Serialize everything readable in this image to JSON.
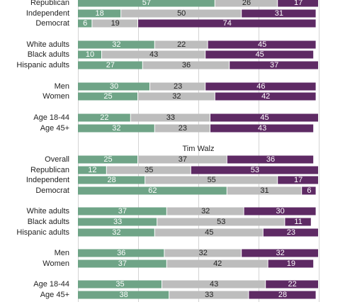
{
  "colors": {
    "segment1": "#6fa487",
    "segment2": "#bdbdbd",
    "segment3": "#5e2a64",
    "label_on_segment1": "#ffffff",
    "label_on_segment2": "#222222",
    "label_on_segment3": "#ffffff",
    "grid": "#d4d4d4",
    "axis_text": "#222222"
  },
  "chart_data": [
    {
      "type": "bar",
      "orientation": "horizontal",
      "stacked": true,
      "title": "",
      "categories": [
        "Republican",
        "Independent",
        "Democrat",
        "White adults",
        "Black adults",
        "Hispanic adults",
        "Men",
        "Women",
        "Age 18-44",
        "Age 45+"
      ],
      "values": [
        [
          57,
          26,
          17
        ],
        [
          18,
          50,
          31
        ],
        [
          6,
          19,
          74
        ],
        [
          32,
          22,
          45
        ],
        [
          10,
          43,
          45
        ],
        [
          27,
          36,
          37
        ],
        [
          30,
          23,
          46
        ],
        [
          25,
          32,
          42
        ],
        [
          22,
          33,
          45
        ],
        [
          32,
          23,
          43
        ]
      ],
      "xlim": [
        0,
        100
      ],
      "grid": true
    },
    {
      "type": "bar",
      "orientation": "horizontal",
      "stacked": true,
      "title": "Tim Walz",
      "categories": [
        "Overall",
        "Republican",
        "Independent",
        "Democrat",
        "White adults",
        "Black adults",
        "Hispanic adults",
        "Men",
        "Women",
        "Age 18-44",
        "Age 45+"
      ],
      "values": [
        [
          25,
          37,
          36
        ],
        [
          12,
          35,
          53
        ],
        [
          28,
          55,
          17
        ],
        [
          62,
          31,
          6
        ],
        [
          37,
          32,
          30
        ],
        [
          33,
          53,
          11
        ],
        [
          32,
          45,
          23
        ],
        [
          36,
          32,
          32
        ],
        [
          37,
          42,
          19
        ],
        [
          35,
          43,
          22
        ],
        [
          38,
          33,
          28
        ]
      ],
      "xlim": [
        0,
        100
      ],
      "grid": true
    }
  ]
}
